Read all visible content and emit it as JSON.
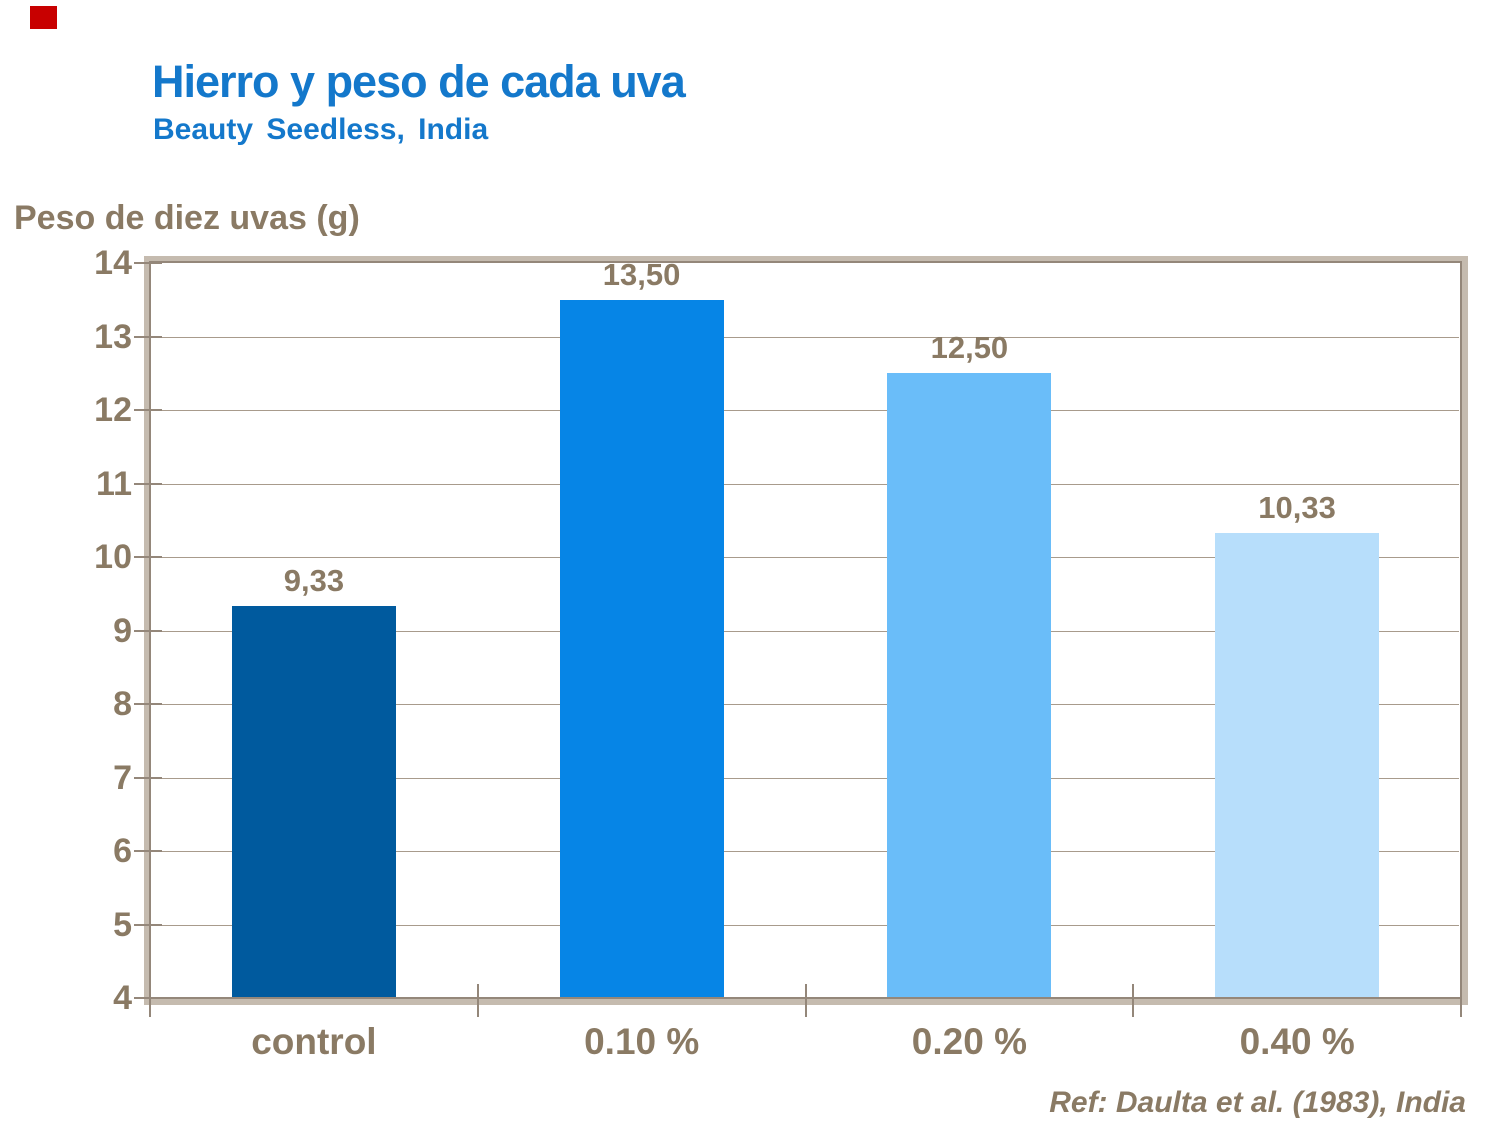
{
  "slide": {
    "title": "Hierro y peso de cada uva",
    "subtitle": "Beauty Seedless, India",
    "y_axis_title": "Peso de diez uvas (g)",
    "reference": "Ref: Daulta et al. (1983), India",
    "corner_marker_color": "#C80000",
    "colors": {
      "title_blue": "#1478CB",
      "text_brown": "#8A7A64",
      "gridline": "#A89B8C",
      "frame_dark": "#94877A",
      "frame_light": "#C5BBAF",
      "background": "#FFFFFF"
    }
  },
  "chart_data": {
    "type": "bar",
    "title": "Hierro y peso de cada uva",
    "subtitle": "Beauty Seedless, India",
    "xlabel": "",
    "ylabel": "Peso de diez uvas (g)",
    "categories": [
      "control",
      "0.10 %",
      "0.20 %",
      "0.40 %"
    ],
    "values": [
      9.33,
      13.5,
      12.5,
      10.33
    ],
    "value_labels": [
      "9,33",
      "13,50",
      "12,50",
      "10,33"
    ],
    "bar_colors": [
      "#005A9E",
      "#0685E6",
      "#6ABDF9",
      "#B7DEFB"
    ],
    "ylim": [
      4,
      14
    ],
    "yticks": [
      4,
      5,
      6,
      7,
      8,
      9,
      10,
      11,
      12,
      13,
      14
    ],
    "grid": true,
    "legend": false,
    "annotation": "Ref: Daulta et al. (1983), India"
  }
}
